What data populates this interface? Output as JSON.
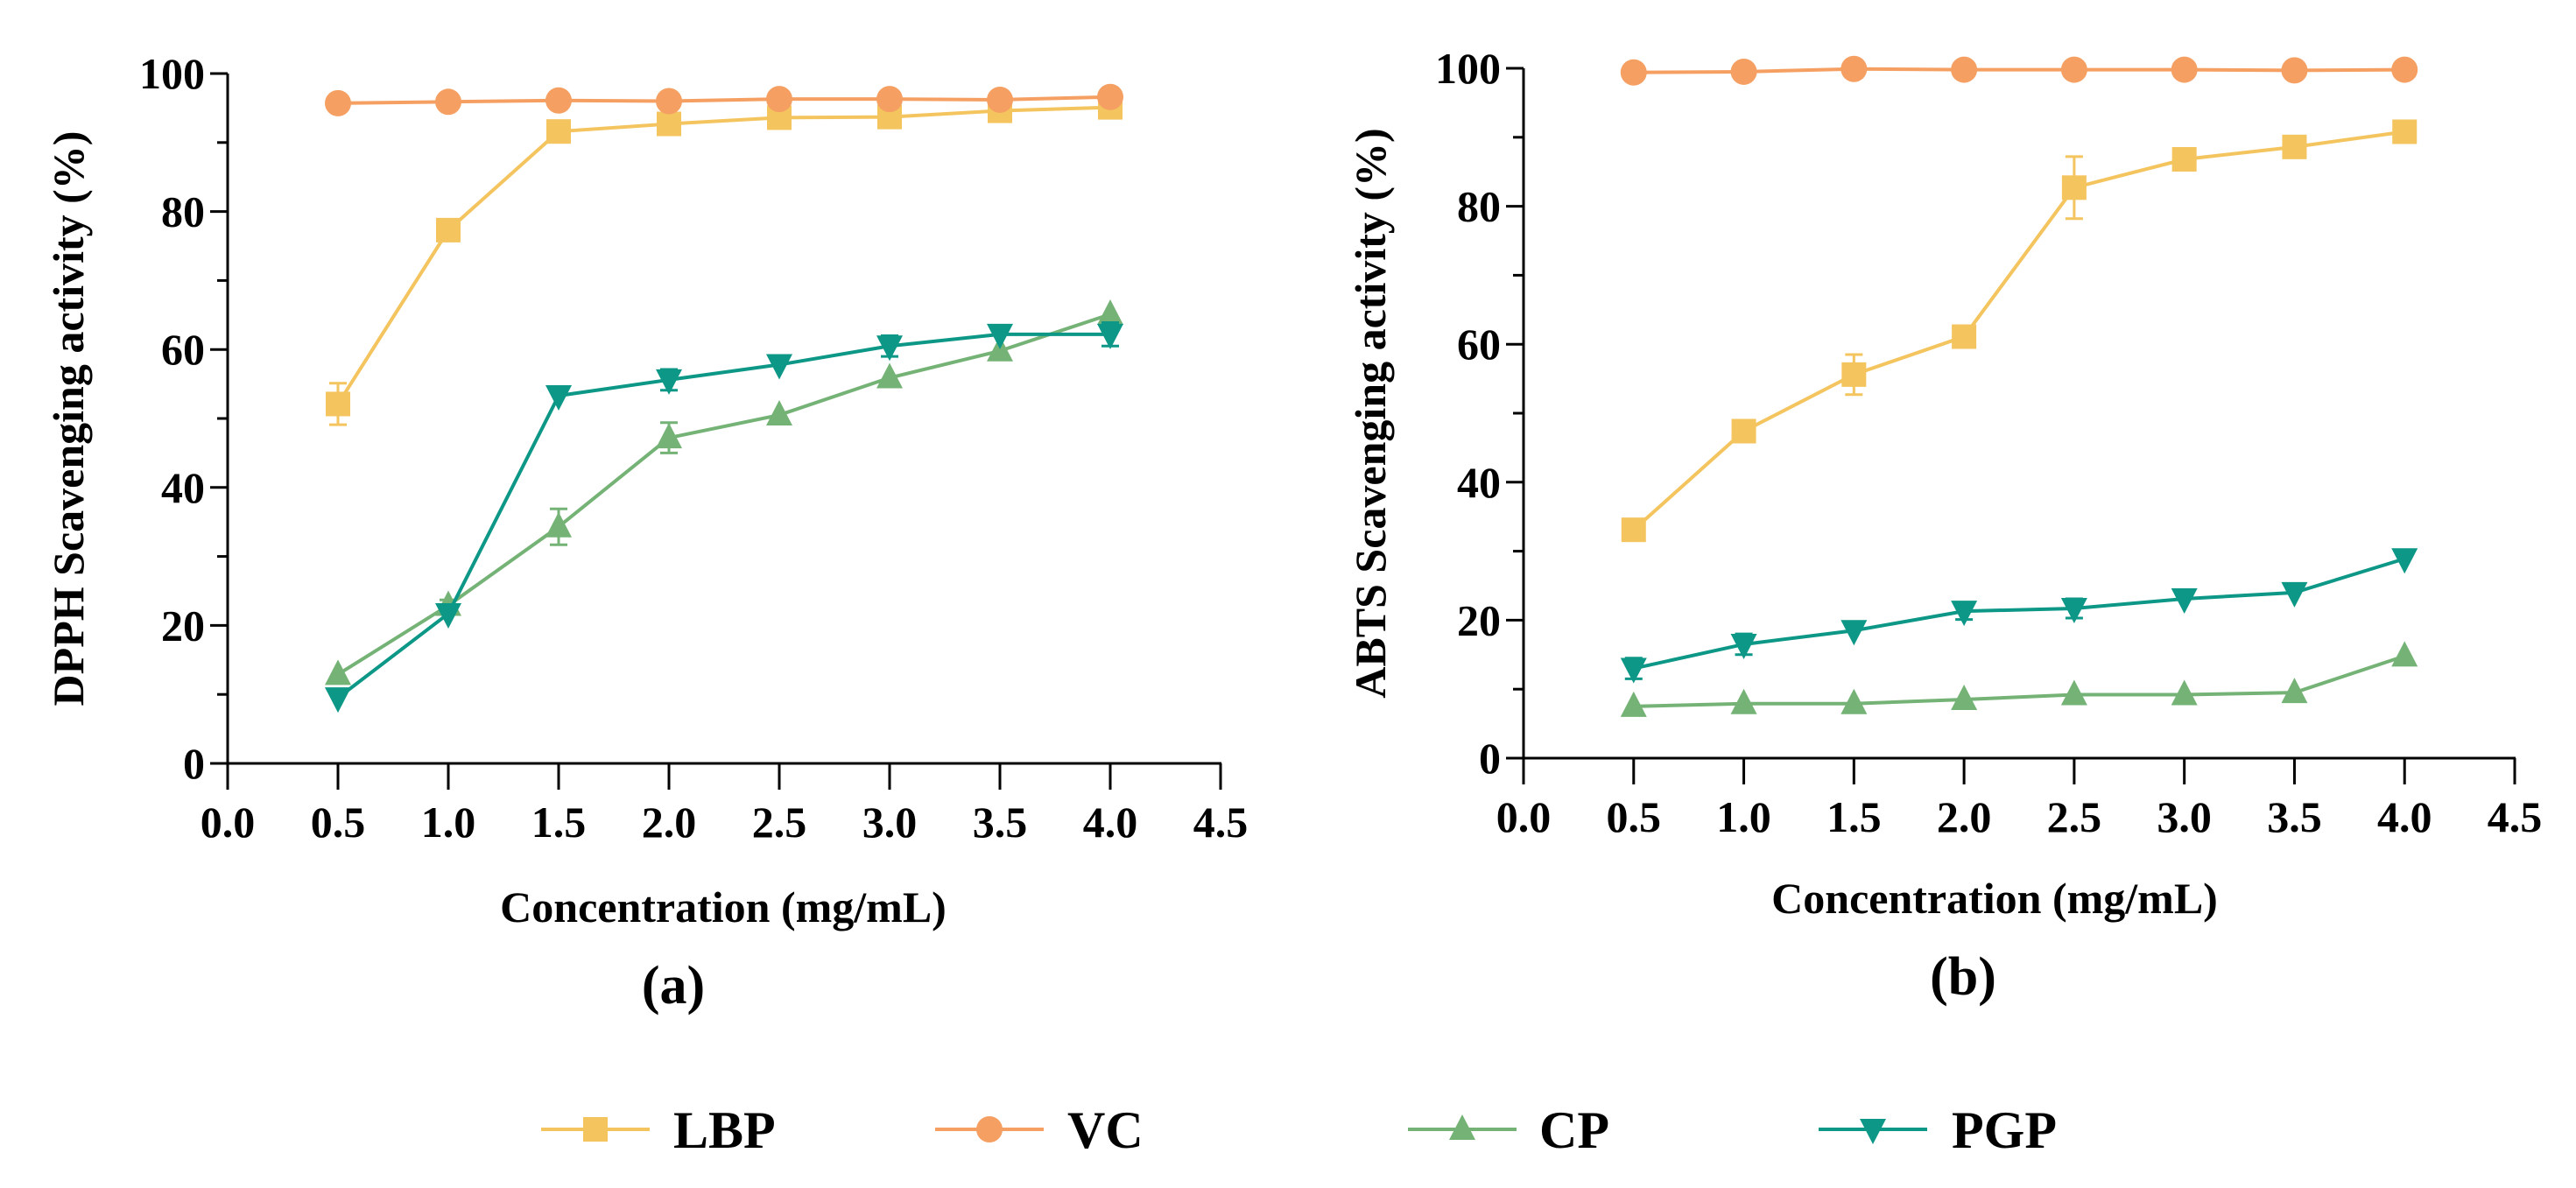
{
  "legend": [
    {
      "name": "LBP",
      "color": "#F4C45E",
      "marker": "square"
    },
    {
      "name": "VC",
      "color": "#F5A062",
      "marker": "circle"
    },
    {
      "name": "CP",
      "color": "#74B375",
      "marker": "triangle-up"
    },
    {
      "name": "PGP",
      "color": "#0C9787",
      "marker": "triangle-down"
    }
  ],
  "chart_data": [
    {
      "type": "line",
      "panel_label": "(a)",
      "xlabel": "Concentration (mg/mL)",
      "ylabel": "DPPH Scavenging  activity (%)",
      "xlim": [
        0,
        4.5
      ],
      "ylim": [
        0,
        100
      ],
      "xticks": [
        "0.0",
        "0.5",
        "1.0",
        "1.5",
        "2.0",
        "2.5",
        "3.0",
        "3.5",
        "4.0",
        "4.5"
      ],
      "yticks": [
        "0",
        "20",
        "40",
        "60",
        "80",
        "100"
      ],
      "x": [
        0.5,
        1.0,
        1.5,
        2.0,
        2.5,
        3.0,
        3.5,
        4.0
      ],
      "series": [
        {
          "name": "LBP",
          "values": [
            52.1,
            77.3,
            91.6,
            92.7,
            93.6,
            93.7,
            94.6,
            95.1
          ],
          "errors": [
            3.0,
            0.5,
            1.0,
            0.5,
            0.5,
            0.5,
            0.5,
            0.5
          ]
        },
        {
          "name": "VC",
          "values": [
            95.7,
            95.9,
            96.1,
            96.0,
            96.3,
            96.3,
            96.2,
            96.6
          ],
          "errors": [
            0.3,
            0.3,
            0.3,
            0.3,
            0.3,
            0.3,
            0.3,
            0.3
          ]
        },
        {
          "name": "CP",
          "values": [
            12.9,
            22.9,
            34.3,
            47.2,
            50.5,
            55.9,
            59.8,
            65.1
          ],
          "errors": [
            0.5,
            0.8,
            2.6,
            2.2,
            0.5,
            0.5,
            0.5,
            0.5
          ]
        },
        {
          "name": "PGP",
          "values": [
            9.5,
            21.7,
            53.3,
            55.6,
            57.8,
            60.5,
            62.2,
            62.2
          ],
          "errors": [
            0.5,
            0.5,
            0.5,
            1.5,
            0.5,
            1.5,
            0.5,
            1.7
          ]
        }
      ]
    },
    {
      "type": "line",
      "panel_label": "(b)",
      "xlabel": "Concentration (mg/mL)",
      "ylabel": "ABTS Scavenging  activity (%)",
      "xlim": [
        0,
        4.5
      ],
      "ylim": [
        0,
        100
      ],
      "xticks": [
        "0.0",
        "0.5",
        "1.0",
        "1.5",
        "2.0",
        "2.5",
        "3.0",
        "3.5",
        "4.0",
        "4.5"
      ],
      "yticks": [
        "0",
        "20",
        "40",
        "60",
        "80",
        "100"
      ],
      "x": [
        0.5,
        1.0,
        1.5,
        2.0,
        2.5,
        3.0,
        3.5,
        4.0
      ],
      "series": [
        {
          "name": "LBP",
          "values": [
            33.1,
            47.4,
            55.6,
            61.1,
            82.7,
            86.8,
            88.6,
            90.8
          ],
          "errors": [
            0.5,
            0.5,
            2.9,
            0.5,
            4.5,
            1.2,
            0.5,
            0.5
          ]
        },
        {
          "name": "VC",
          "values": [
            99.4,
            99.5,
            99.9,
            99.8,
            99.8,
            99.8,
            99.7,
            99.8
          ],
          "errors": [
            0.2,
            0.2,
            0.2,
            0.2,
            0.2,
            0.2,
            0.2,
            0.2
          ]
        },
        {
          "name": "CP",
          "values": [
            7.5,
            7.9,
            7.9,
            8.5,
            9.2,
            9.2,
            9.5,
            14.8
          ],
          "errors": [
            0.3,
            0.3,
            0.3,
            0.3,
            0.3,
            0.3,
            0.3,
            0.3
          ]
        },
        {
          "name": "PGP",
          "values": [
            13.0,
            16.5,
            18.5,
            21.3,
            21.7,
            23.1,
            24.0,
            28.9
          ],
          "errors": [
            1.5,
            1.5,
            0.5,
            1.2,
            1.4,
            0.5,
            0.5,
            0.5
          ]
        }
      ]
    }
  ]
}
